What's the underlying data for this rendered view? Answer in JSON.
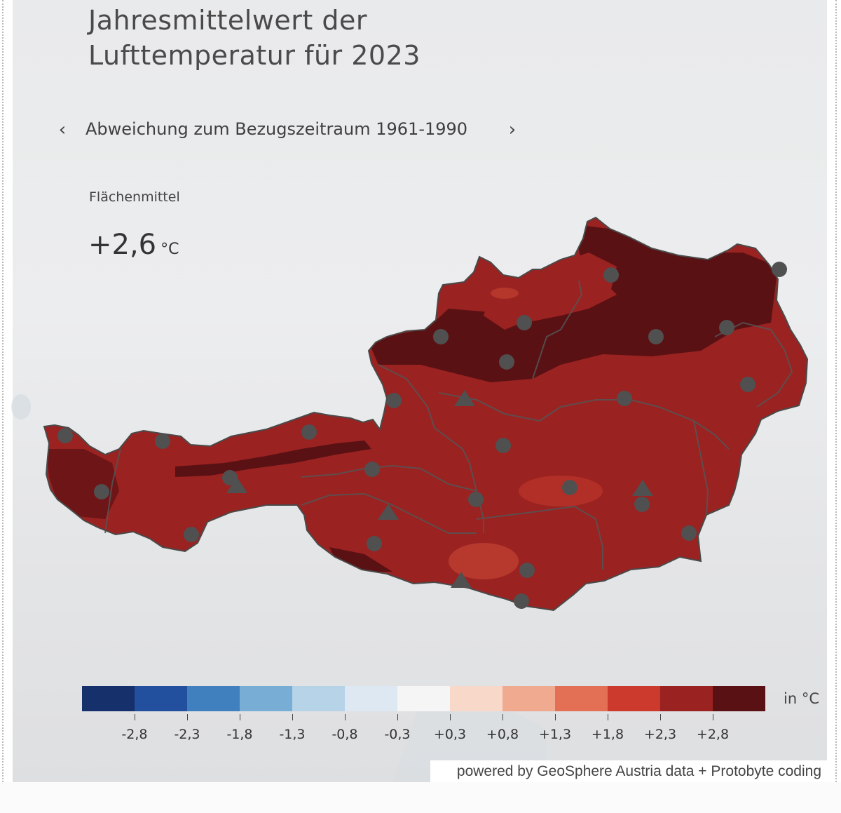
{
  "title": "Jahresmittelwert der\nLufttemperatur für 2023",
  "nav": {
    "prev_icon": "chevron-left-icon",
    "prev_glyph": "‹",
    "next_icon": "chevron-right-icon",
    "next_glyph": "›",
    "subtitle": "Abweichung zum Bezugszeitraum 1961-1990"
  },
  "area_mean": {
    "label": "Flächenmittel",
    "value": "+2,6",
    "unit": "°C"
  },
  "map": {
    "region": "Austria",
    "fill_colors": {
      "dominant": "#9a2221",
      "hot": "#5a1114",
      "warm_spots": "#d04a36",
      "border": "#555555",
      "station": "#505050"
    },
    "station_symbols": [
      "circle",
      "triangle"
    ]
  },
  "legend": {
    "unit": "in °C",
    "colors": [
      "#16306b",
      "#22509e",
      "#4080bf",
      "#78aed6",
      "#b7d3e8",
      "#dde8f3",
      "#f5f5f5",
      "#f8d9c9",
      "#f0aa8f",
      "#e37055",
      "#cc3a2e",
      "#9a2221",
      "#5a1114"
    ],
    "ticks": [
      "-2,8",
      "-2,3",
      "-1,8",
      "-1,3",
      "-0,8",
      "-0,3",
      "+0,3",
      "+0,8",
      "+1,3",
      "+1,8",
      "+2,3",
      "+2,8"
    ]
  },
  "credit": "powered by GeoSphere Austria data + Protobyte coding"
}
